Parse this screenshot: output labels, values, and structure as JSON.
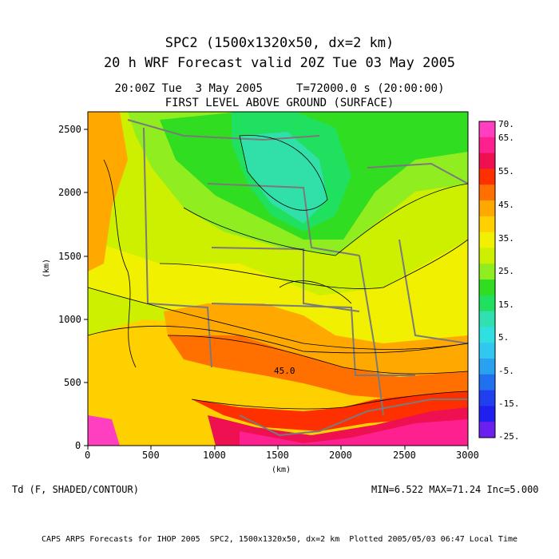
{
  "titles": {
    "line1": "SPC2 (1500x1320x50, dx=2 km)",
    "line2": "20 h WRF Forecast valid 20Z Tue 03 May 2005",
    "line3": "20:00Z Tue  3 May 2005     T=72000.0 s (20:00:00)",
    "line4": "FIRST LEVEL ABOVE GROUND (SURFACE)"
  },
  "axes": {
    "x_label": "(km)",
    "y_label": "(km)",
    "x_ticks": [
      "0",
      "500",
      "1000",
      "1500",
      "2000",
      "2500",
      "3000"
    ],
    "y_ticks": [
      "0",
      "500",
      "1000",
      "1500",
      "2000",
      "2500"
    ]
  },
  "colorbar": {
    "labels": [
      "70.",
      "65.",
      "55.",
      "45.",
      "35.",
      "25.",
      "15.",
      "5.",
      "-5.",
      "-15.",
      "-25."
    ],
    "colors": [
      "#ff3fbf",
      "#ff2090",
      "#ee1050",
      "#ff3000",
      "#ff7000",
      "#ffa800",
      "#ffd000",
      "#f0f000",
      "#ccf000",
      "#90ee20",
      "#30dd20",
      "#20e060",
      "#30e0b0",
      "#30e0e0",
      "#30c8f0",
      "#2aa0f0",
      "#2070f0",
      "#2040f0",
      "#2020ee",
      "#6a20ee"
    ]
  },
  "map": {
    "contour_label": "45.0",
    "regions_colors": {
      "cold": "#30e0a8",
      "green": "#30dd20",
      "lightgreen": "#90ee20",
      "yellowgreen": "#ccf000",
      "yellow": "#f0f000",
      "gold": "#ffd000",
      "orange": "#ffa800",
      "darkorange": "#ff7000",
      "red": "#ee1050",
      "magenta": "#ff2090",
      "pink": "#ff3fbf"
    }
  },
  "footer": {
    "field": "Td (F, SHADED/CONTOUR)",
    "stats": "MIN=6.522 MAX=71.24 Inc=5.000",
    "credit": "CAPS ARPS Forecasts for IHOP 2005  SPC2, 1500x1320x50, dx=2 km  Plotted 2005/05/03 06:47 Local Time"
  }
}
